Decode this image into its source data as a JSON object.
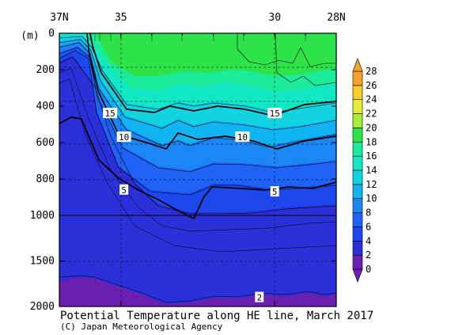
{
  "chart_data": {
    "type": "heatmap",
    "title": "Potential Temperature along HE line, March 2017",
    "credit": "(C) Japan Meteorological Agency",
    "x_tick_labels": [
      "37N",
      "35",
      "30",
      "28N"
    ],
    "x_ticks": [
      37,
      35,
      30,
      28
    ],
    "xlim": [
      37,
      28
    ],
    "y_unit": "(m)",
    "y_tick_labels": [
      "0",
      "200",
      "400",
      "600",
      "800",
      "1000",
      "1500",
      "2000"
    ],
    "y_ticks": [
      0,
      200,
      400,
      600,
      800,
      1000,
      1500,
      2000
    ],
    "ylim": [
      0,
      2000
    ],
    "colorbar": {
      "levels": [
        0,
        2,
        4,
        6,
        8,
        10,
        12,
        14,
        16,
        18,
        20,
        22,
        24,
        26,
        28
      ],
      "labels": [
        "0",
        "2",
        "4",
        "6",
        "8",
        "10",
        "12",
        "14",
        "16",
        "18",
        "20",
        "22",
        "24",
        "26",
        "28"
      ],
      "colors": [
        "#6a1fb0",
        "#2a2fd8",
        "#1c48ee",
        "#1f62f5",
        "#1d86f5",
        "#0fb4f0",
        "#12d4e0",
        "#13e8c4",
        "#1ceb9c",
        "#2ee34a",
        "#a8ec3c",
        "#e4ed32",
        "#f6cb2a",
        "#f5a22a"
      ]
    },
    "contour_labels": [
      {
        "text": "15",
        "lat": 35.35,
        "depth": 440
      },
      {
        "text": "15",
        "lat": 30.0,
        "depth": 440
      },
      {
        "text": "10",
        "lat": 34.9,
        "depth": 570
      },
      {
        "text": "10",
        "lat": 31.05,
        "depth": 570
      },
      {
        "text": "5",
        "lat": 34.9,
        "depth": 860
      },
      {
        "text": "5",
        "lat": 30.0,
        "depth": 870
      },
      {
        "text": "2",
        "lat": 30.5,
        "depth": 1900
      }
    ]
  }
}
